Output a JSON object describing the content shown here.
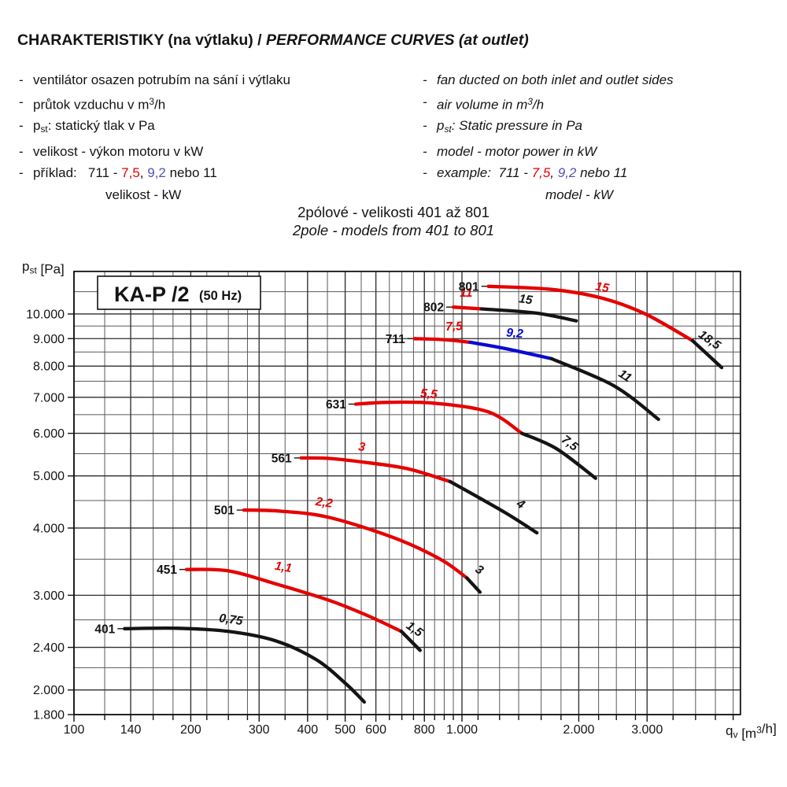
{
  "header": {
    "title_cs": "CHARAKTERISTIKY (na výtlaku)",
    "separator": " / ",
    "title_en": "PERFORMANCE CURVES (at outlet)"
  },
  "notes": {
    "cs": {
      "items": [
        {
          "cont": false,
          "seg": [
            {
              "t": "ventilátor osazen potrubím na sání i výtlaku"
            }
          ]
        },
        {
          "cont": false,
          "seg": [
            {
              "t": "průtok vzduchu v m"
            },
            {
              "t": "3",
              "s": "sup"
            },
            {
              "t": "/h"
            }
          ]
        },
        {
          "cont": false,
          "seg": [
            {
              "t": "p"
            },
            {
              "t": "st",
              "s": "sub"
            },
            {
              "t": ": statický tlak v Pa"
            }
          ]
        },
        {
          "cont": false,
          "seg": [
            {
              "t": "velikost - výkon motoru v kW"
            }
          ]
        },
        {
          "cont": false,
          "seg": [
            {
              "t": "příklad:   711 - "
            },
            {
              "t": "7,5",
              "s": "red"
            },
            {
              "t": ", "
            },
            {
              "t": "9,2",
              "s": "blue"
            },
            {
              "t": " nebo 11"
            }
          ]
        },
        {
          "cont": true,
          "seg": [
            {
              "t": "velikost - kW"
            }
          ]
        }
      ]
    },
    "en": {
      "items": [
        {
          "cont": false,
          "seg": [
            {
              "t": "fan ducted on both inlet and outlet sides"
            }
          ]
        },
        {
          "cont": false,
          "seg": [
            {
              "t": "air volume in m"
            },
            {
              "t": "3",
              "s": "sup"
            },
            {
              "t": "/h"
            }
          ]
        },
        {
          "cont": false,
          "seg": [
            {
              "t": "p"
            },
            {
              "t": "st",
              "s": "sub"
            },
            {
              "t": ": Static pressure in Pa"
            }
          ]
        },
        {
          "cont": false,
          "seg": [
            {
              "t": "model - motor power in kW"
            }
          ]
        },
        {
          "cont": false,
          "seg": [
            {
              "t": "example:  711 - "
            },
            {
              "t": "7,5",
              "s": "red"
            },
            {
              "t": ", "
            },
            {
              "t": "9,2",
              "s": "blue"
            },
            {
              "t": " nebo 11"
            }
          ]
        },
        {
          "cont": true,
          "seg": [
            {
              "t": "model - kW"
            }
          ]
        }
      ]
    }
  },
  "subtitle": {
    "line1": "2pólové - velikosti 401 až 801",
    "line2": "2pole - models from 401 to 801"
  },
  "colors": {
    "red": "#e60000",
    "blue": "#0a0ad2",
    "black": "#141414",
    "grid_minor": "#5a5a5a",
    "grid_major": "#2e2e2e",
    "frame": "#111111"
  },
  "chart_data": {
    "type": "line",
    "title": "KA-P /2",
    "title_note": "(50 Hz)",
    "x_axis": {
      "scale": "log",
      "min": 100,
      "max": 5220,
      "unit": "m3/h",
      "label_segments": [
        {
          "t": "q"
        },
        {
          "t": "v",
          "s": "sub"
        },
        {
          "t": " [m"
        },
        {
          "t": "3",
          "s": "sup"
        },
        {
          "t": "/h]"
        }
      ],
      "major_ticks": [
        {
          "value": 100,
          "label": "100"
        },
        {
          "value": 140,
          "label": "140"
        },
        {
          "value": 200,
          "label": "200"
        },
        {
          "value": 300,
          "label": "300"
        },
        {
          "value": 400,
          "label": "400"
        },
        {
          "value": 500,
          "label": "500"
        },
        {
          "value": 600,
          "label": "600"
        },
        {
          "value": 800,
          "label": "800"
        },
        {
          "value": 1000,
          "label": "1.000"
        },
        {
          "value": 2000,
          "label": "2.000"
        },
        {
          "value": 3000,
          "label": "3.000"
        }
      ],
      "minor_ticks": [
        120,
        160,
        180,
        220,
        250,
        280,
        350,
        450,
        550,
        650,
        700,
        750,
        850,
        900,
        950,
        1100,
        1250,
        1400,
        1600,
        1800,
        2250,
        2500,
        2800,
        3500,
        4000,
        4500,
        5000
      ]
    },
    "y_axis": {
      "scale": "log",
      "min": 1800,
      "max": 12000,
      "unit": "Pa",
      "label_segments": [
        {
          "t": "p"
        },
        {
          "t": "st",
          "s": "sub"
        },
        {
          "t": " [Pa]"
        }
      ],
      "major_ticks": [
        {
          "value": 10000,
          "label": "10.000"
        },
        {
          "value": 9000,
          "label": "9.000"
        },
        {
          "value": 8000,
          "label": "8.000"
        },
        {
          "value": 7000,
          "label": "7.000"
        },
        {
          "value": 6000,
          "label": "6.000"
        },
        {
          "value": 5000,
          "label": "5.000"
        },
        {
          "value": 4000,
          "label": "4.000"
        },
        {
          "value": 3000,
          "label": "3.000"
        },
        {
          "value": 2400,
          "label": "2.400"
        },
        {
          "value": 2000,
          "label": "2.000"
        },
        {
          "value": 1800,
          "label": "1.800"
        }
      ],
      "minor_ticks": [
        11000,
        9500,
        8500,
        7500,
        6500,
        5500,
        4500,
        3500,
        2700,
        2200
      ]
    },
    "series": [
      {
        "model": "401",
        "segments": [
          {
            "color": "black",
            "power": "0,75",
            "label_at": [
              253,
              2660
            ],
            "label_rot": 8,
            "points": [
              [
                135,
                2600
              ],
              [
                185,
                2605
              ],
              [
                250,
                2570
              ],
              [
                330,
                2470
              ],
              [
                420,
                2280
              ],
              [
                500,
                2060
              ],
              [
                560,
                1900
              ]
            ]
          }
        ]
      },
      {
        "model": "451",
        "segments": [
          {
            "color": "red",
            "power": "1,1",
            "label_at": [
              345,
              3330
            ],
            "label_rot": 10,
            "points": [
              [
                195,
                3350
              ],
              [
                250,
                3330
              ],
              [
                331,
                3150
              ],
              [
                452,
                2940
              ],
              [
                571,
                2750
              ],
              [
                698,
                2570
              ]
            ]
          },
          {
            "color": "black",
            "power": "1,5",
            "label_at": [
              745,
              2560
            ],
            "label_rot": 35,
            "points": [
              [
                698,
                2570
              ],
              [
                780,
                2370
              ]
            ]
          }
        ]
      },
      {
        "model": "501",
        "segments": [
          {
            "color": "red",
            "power": "2,2",
            "label_at": [
              440,
              4390
            ],
            "label_rot": 8,
            "points": [
              [
                274,
                4320
              ],
              [
                340,
                4300
              ],
              [
                452,
                4190
              ],
              [
                666,
                3840
              ],
              [
                880,
                3500
              ],
              [
                1030,
                3230
              ]
            ]
          },
          {
            "color": "black",
            "power": "3",
            "label_at": [
              1095,
              3300
            ],
            "label_rot": 33,
            "points": [
              [
                1030,
                3230
              ],
              [
                1113,
                3040
              ]
            ]
          }
        ]
      },
      {
        "model": "561",
        "segments": [
          {
            "color": "red",
            "power": "3",
            "label_at": [
              550,
              5570
            ],
            "label_rot": 8,
            "points": [
              [
                385,
                5400
              ],
              [
                450,
                5390
              ],
              [
                550,
                5310
              ],
              [
                721,
                5160
              ],
              [
                932,
                4880
              ]
            ]
          },
          {
            "color": "black",
            "power": "4",
            "label_at": [
              1400,
              4370
            ],
            "label_rot": 33,
            "points": [
              [
                932,
                4880
              ],
              [
                1280,
                4290
              ],
              [
                1560,
                3920
              ]
            ]
          }
        ]
      },
      {
        "model": "631",
        "segments": [
          {
            "color": "red",
            "power": "5,5",
            "label_at": [
              820,
              6990
            ],
            "label_rot": 5,
            "points": [
              [
                532,
                6800
              ],
              [
                640,
                6850
              ],
              [
                841,
                6830
              ],
              [
                1167,
                6580
              ],
              [
                1427,
                6000
              ]
            ]
          },
          {
            "color": "black",
            "power": "7,5",
            "label_at": [
              1870,
              5680
            ],
            "label_rot": 38,
            "points": [
              [
                1427,
                6000
              ],
              [
                1751,
                5620
              ],
              [
                2210,
                4950
              ]
            ]
          }
        ]
      },
      {
        "model": "711",
        "segments": [
          {
            "color": "red",
            "power": "7,5",
            "label_at": [
              955,
              9330
            ],
            "label_rot": -2,
            "points": [
              [
                755,
                9000
              ],
              [
                900,
                8960
              ],
              [
                1050,
                8860
              ]
            ]
          },
          {
            "color": "blue",
            "power": "9,2",
            "label_at": [
              1365,
              9060
            ],
            "label_rot": 5,
            "points": [
              [
                1050,
                8860
              ],
              [
                1300,
                8620
              ],
              [
                1700,
                8260
              ]
            ]
          },
          {
            "color": "black",
            "power": "11",
            "label_at": [
              2600,
              7570
            ],
            "label_rot": 33,
            "points": [
              [
                1700,
                8260
              ],
              [
                2460,
                7360
              ],
              [
                3210,
                6370
              ]
            ]
          }
        ]
      },
      {
        "model": "802",
        "segments": [
          {
            "color": "red",
            "power": "11",
            "label_at": [
              1025,
              10760
            ],
            "label_rot": 0,
            "points": [
              [
                950,
                10300
              ],
              [
                1124,
                10220
              ]
            ]
          },
          {
            "color": "black",
            "power": "15",
            "label_at": [
              1455,
              10470
            ],
            "label_rot": 8,
            "points": [
              [
                1124,
                10220
              ],
              [
                1550,
                10040
              ],
              [
                1970,
                9710
              ]
            ]
          }
        ]
      },
      {
        "model": "801",
        "segments": [
          {
            "color": "red",
            "power": "15",
            "label_at": [
              2290,
              11030
            ],
            "label_rot": 10,
            "points": [
              [
                1170,
                11260
              ],
              [
                1700,
                11110
              ],
              [
                2300,
                10700
              ],
              [
                2970,
                10000
              ],
              [
                3930,
                8920
              ]
            ]
          },
          {
            "color": "black",
            "power": "18,5",
            "label_at": [
              4290,
              8830
            ],
            "label_rot": 35,
            "points": [
              [
                3930,
                8920
              ],
              [
                4670,
                7950
              ]
            ]
          }
        ]
      }
    ]
  }
}
